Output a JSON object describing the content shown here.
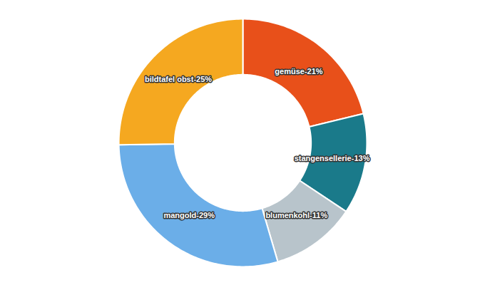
{
  "chart_data": {
    "type": "pie",
    "categories": [
      "gemüse",
      "stangensellerie",
      "blumenkohl",
      "mangold",
      "bildtafel obst"
    ],
    "values": [
      21,
      13,
      11,
      29,
      25
    ],
    "value_labels": [
      "gemüse-21%",
      "stangensellerie-13%",
      "blumenkohl-11%",
      "mangold-29%",
      "bildtafel obst-25%"
    ],
    "colors": [
      "#E8501A",
      "#1A7A8A",
      "#B8C4CB",
      "#6BAEE8",
      "#F5A820"
    ],
    "data_labels": true
  }
}
